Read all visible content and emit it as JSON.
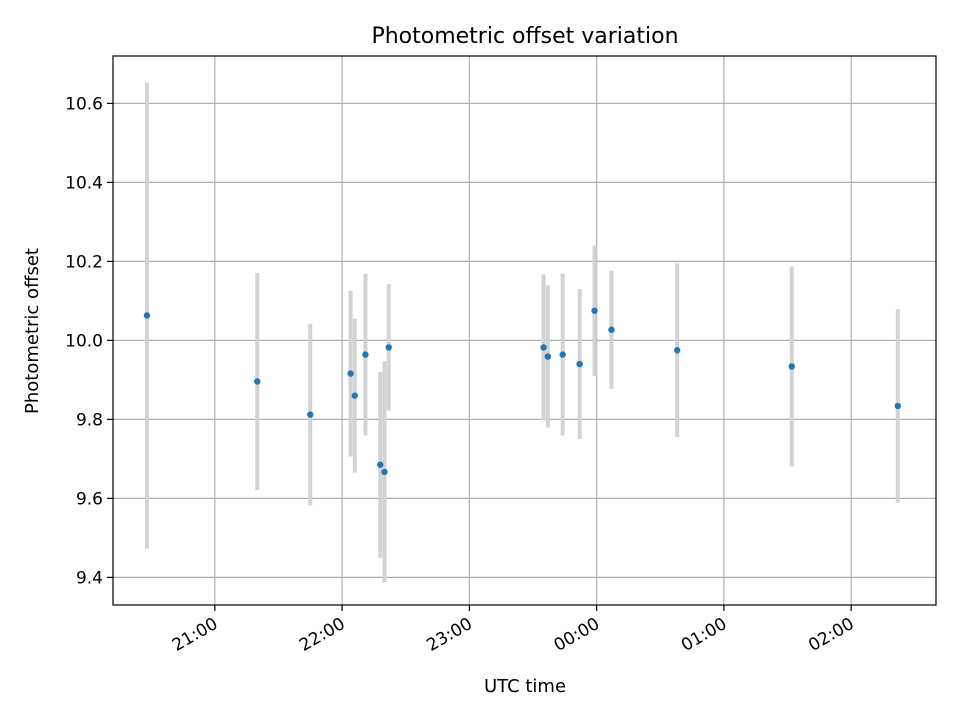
{
  "chart_data": {
    "type": "scatter",
    "title": "Photometric offset variation",
    "xlabel": "UTC time",
    "ylabel": "Photometric offset",
    "x_ticks": [
      "21:00",
      "22:00",
      "23:00",
      "00:00",
      "01:00",
      "02:00"
    ],
    "y_ticks": [
      "9.4",
      "9.6",
      "9.8",
      "10.0",
      "10.2",
      "10.4",
      "10.6"
    ],
    "xlim": [
      "20:12",
      "02:40"
    ],
    "ylim": [
      9.33,
      10.72
    ],
    "grid": true,
    "point_color": "#1f77b4",
    "errorbar_color": "#d3d3d3",
    "points": [
      {
        "time": "20:28",
        "y": 10.063,
        "err": 0.59
      },
      {
        "time": "21:20",
        "y": 9.896,
        "err": 0.275
      },
      {
        "time": "21:45",
        "y": 9.812,
        "err": 0.23
      },
      {
        "time": "22:04",
        "y": 9.916,
        "err": 0.21
      },
      {
        "time": "22:06",
        "y": 9.86,
        "err": 0.195
      },
      {
        "time": "22:11",
        "y": 9.964,
        "err": 0.205
      },
      {
        "time": "22:18",
        "y": 9.685,
        "err": 0.235
      },
      {
        "time": "22:20",
        "y": 9.667,
        "err": 0.28
      },
      {
        "time": "22:22",
        "y": 9.982,
        "err": 0.16
      },
      {
        "time": "23:35",
        "y": 9.982,
        "err": 0.185
      },
      {
        "time": "23:37",
        "y": 9.959,
        "err": 0.18
      },
      {
        "time": "23:44",
        "y": 9.964,
        "err": 0.205
      },
      {
        "time": "23:52",
        "y": 9.94,
        "err": 0.19
      },
      {
        "time": "23:59",
        "y": 10.075,
        "err": 0.165
      },
      {
        "time": "00:07",
        "y": 10.027,
        "err": 0.15
      },
      {
        "time": "00:38",
        "y": 9.975,
        "err": 0.22
      },
      {
        "time": "01:32",
        "y": 9.934,
        "err": 0.253
      },
      {
        "time": "02:22",
        "y": 9.834,
        "err": 0.245
      }
    ]
  }
}
